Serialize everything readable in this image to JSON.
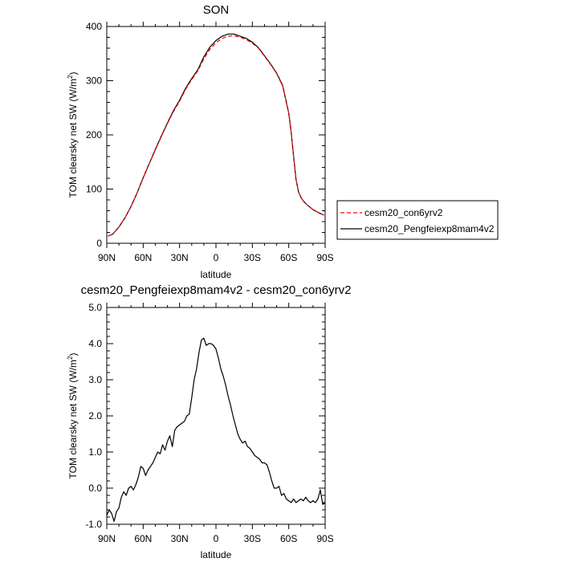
{
  "chart_data": [
    {
      "type": "line",
      "title": "SON",
      "xlabel": "latitude",
      "ylabel_main": "TOM clearsky net SW (W/m",
      "ylabel_sup": "2",
      "ylabel_tail": ")",
      "x_range": [
        90,
        -90
      ],
      "ylim": [
        0,
        400
      ],
      "yticks": [
        0,
        100,
        200,
        300,
        400
      ],
      "ytick_labels": [
        "0",
        "100",
        "200",
        "300",
        "400"
      ],
      "xticks": [
        90,
        60,
        30,
        0,
        -30,
        -60,
        -90
      ],
      "xtick_labels": [
        "90N",
        "60N",
        "30N",
        "0",
        "30S",
        "60S",
        "90S"
      ],
      "legend": [
        {
          "name": "cesm20_con6yrv2",
          "color": "#ff0000",
          "dash": "dashed"
        },
        {
          "name": "cesm20_Pengfeiexp8mam4v2",
          "color": "#000000",
          "dash": "solid"
        }
      ],
      "x": [
        89,
        85,
        80,
        75,
        70,
        65,
        60,
        55,
        50,
        45,
        40,
        35,
        30,
        25,
        20,
        15,
        10,
        5,
        0,
        -5,
        -10,
        -15,
        -20,
        -25,
        -30,
        -35,
        -40,
        -45,
        -50,
        -55,
        -60,
        -62,
        -64,
        -66,
        -68,
        -70,
        -72,
        -75,
        -80,
        -85,
        -89
      ],
      "series": [
        {
          "name": "cesm20_con6yrv2",
          "color": "#ff0000",
          "values": [
            13,
            17,
            30,
            47,
            68,
            93,
            120,
            147,
            172,
            197,
            221,
            243,
            262,
            284,
            302,
            318,
            340,
            358,
            370,
            378,
            382,
            383,
            380,
            376,
            369,
            360,
            345,
            330,
            313,
            290,
            240,
            205,
            160,
            118,
            95,
            85,
            78,
            71,
            62,
            56,
            52
          ]
        },
        {
          "name": "cesm20_Pengfeiexp8mam4v2",
          "color": "#000000",
          "values": [
            13,
            17,
            30,
            47,
            68,
            93,
            121,
            147,
            173,
            198,
            222,
            245,
            264,
            286,
            304,
            320,
            344,
            362,
            374,
            382,
            386,
            386,
            382,
            378,
            371,
            361,
            346,
            331,
            314,
            291,
            240,
            205,
            160,
            118,
            95,
            85,
            78,
            71,
            62,
            56,
            52
          ]
        }
      ]
    },
    {
      "type": "line",
      "title": "cesm20_Pengfeiexp8mam4v2 - cesm20_con6yrv2",
      "xlabel": "latitude",
      "ylabel_main": "TOM clearsky net SW (W/m",
      "ylabel_sup": "2",
      "ylabel_tail": ")",
      "x_range": [
        90,
        -90
      ],
      "ylim": [
        -1.0,
        5.0
      ],
      "yticks": [
        -1.0,
        0.0,
        1.0,
        2.0,
        3.0,
        4.0,
        5.0
      ],
      "ytick_labels": [
        "-1.0",
        "0.0",
        "1.0",
        "2.0",
        "3.0",
        "4.0",
        "5.0"
      ],
      "xticks": [
        90,
        60,
        30,
        0,
        -30,
        -60,
        -90
      ],
      "xtick_labels": [
        "90N",
        "60N",
        "30N",
        "0",
        "30S",
        "60S",
        "90S"
      ],
      "series": [
        {
          "name": "cesm20_Pengfeiexp8mam4v2 - cesm20_con6yrv2",
          "color": "#000000",
          "x": [
            90,
            88,
            86,
            84,
            82,
            80,
            78,
            76,
            74,
            72,
            70,
            68,
            66,
            64,
            62,
            60,
            58,
            56,
            54,
            52,
            50,
            48,
            46,
            44,
            42,
            40,
            38,
            36,
            34,
            32,
            30,
            28,
            26,
            24,
            22,
            20,
            18,
            16,
            14,
            12,
            10,
            8,
            6,
            4,
            2,
            0,
            -2,
            -4,
            -6,
            -8,
            -10,
            -12,
            -14,
            -16,
            -18,
            -20,
            -22,
            -24,
            -26,
            -28,
            -30,
            -32,
            -34,
            -36,
            -38,
            -40,
            -42,
            -44,
            -46,
            -48,
            -50,
            -52,
            -54,
            -56,
            -58,
            -60,
            -62,
            -64,
            -66,
            -68,
            -70,
            -72,
            -74,
            -76,
            -78,
            -80,
            -82,
            -84,
            -86,
            -88,
            -90
          ],
          "values": [
            -0.75,
            -0.6,
            -0.7,
            -0.92,
            -0.65,
            -0.55,
            -0.25,
            -0.1,
            -0.2,
            0.0,
            0.05,
            -0.05,
            0.1,
            0.3,
            0.6,
            0.55,
            0.35,
            0.5,
            0.6,
            0.7,
            0.85,
            1.0,
            0.95,
            1.2,
            1.05,
            1.3,
            1.45,
            1.15,
            1.6,
            1.7,
            1.75,
            1.8,
            1.85,
            2.0,
            2.05,
            2.5,
            3.0,
            3.3,
            3.75,
            4.1,
            4.15,
            3.95,
            4.0,
            4.0,
            3.95,
            3.85,
            3.6,
            3.3,
            3.1,
            2.85,
            2.55,
            2.3,
            2.0,
            1.75,
            1.5,
            1.35,
            1.25,
            1.3,
            1.15,
            1.1,
            1.0,
            0.9,
            0.85,
            0.8,
            0.7,
            0.7,
            0.65,
            0.45,
            0.2,
            0.0,
            0.0,
            0.05,
            -0.2,
            -0.15,
            -0.3,
            -0.35,
            -0.4,
            -0.3,
            -0.4,
            -0.35,
            -0.3,
            -0.35,
            -0.25,
            -0.35,
            -0.4,
            -0.35,
            -0.4,
            -0.3,
            -0.05,
            -0.45,
            -0.4
          ]
        }
      ]
    }
  ]
}
